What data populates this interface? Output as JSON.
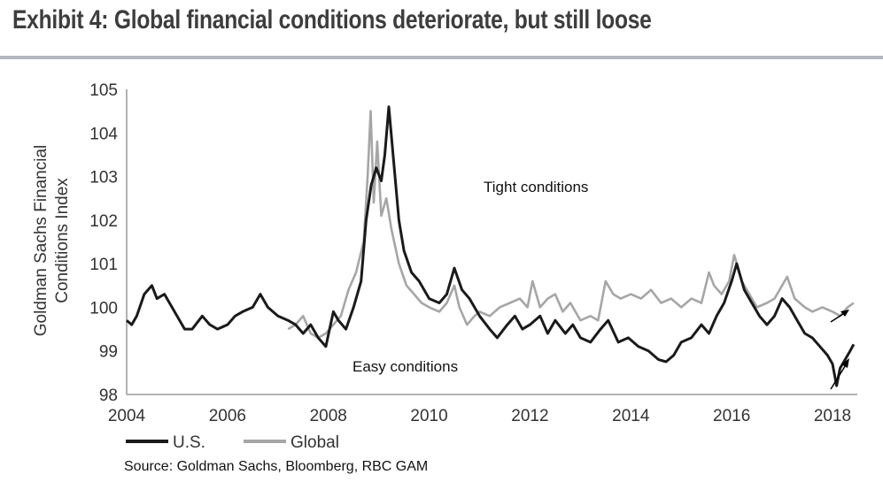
{
  "title": "Exhibit 4: Global financial conditions deteriorate, but still loose",
  "source": "Source: Goldman Sachs, Bloomberg, RBC GAM",
  "chart_data": {
    "type": "line",
    "title": "Exhibit 4: Global financial conditions deteriorate, but still loose",
    "xlabel": "",
    "ylabel": "Goldman Sachs Financial Conditions Index",
    "ylabel_lines": [
      "Goldman Sachs Financial",
      "Conditions Index"
    ],
    "xlim": [
      2004,
      2018.5
    ],
    "ylim": [
      98,
      105
    ],
    "xticks": [
      "2004",
      "2006",
      "2008",
      "2010",
      "2012",
      "2014",
      "2016",
      "2018"
    ],
    "yticks": [
      "98",
      "99",
      "100",
      "101",
      "102",
      "103",
      "104",
      "105"
    ],
    "grid": false,
    "legend_position": "bottom-left",
    "annotations": {
      "tight": "Tight conditions",
      "easy": "Easy conditions"
    },
    "colors": {
      "us": "#1a1a1a",
      "global": "#a6a6a6"
    },
    "series": [
      {
        "name": "U.S.",
        "x": [
          2004.0,
          2004.1,
          2004.2,
          2004.35,
          2004.5,
          2004.6,
          2004.75,
          2004.9,
          2005.0,
          2005.15,
          2005.3,
          2005.5,
          2005.65,
          2005.8,
          2006.0,
          2006.15,
          2006.3,
          2006.5,
          2006.65,
          2006.8,
          2007.0,
          2007.2,
          2007.35,
          2007.5,
          2007.65,
          2007.8,
          2007.95,
          2008.1,
          2008.2,
          2008.35,
          2008.5,
          2008.65,
          2008.75,
          2008.85,
          2008.95,
          2009.05,
          2009.12,
          2009.2,
          2009.3,
          2009.4,
          2009.5,
          2009.65,
          2009.8,
          2010.0,
          2010.2,
          2010.35,
          2010.5,
          2010.65,
          2010.8,
          2011.0,
          2011.2,
          2011.35,
          2011.55,
          2011.7,
          2011.85,
          2012.0,
          2012.2,
          2012.35,
          2012.5,
          2012.7,
          2012.85,
          2013.0,
          2013.2,
          2013.4,
          2013.55,
          2013.75,
          2013.95,
          2014.15,
          2014.35,
          2014.55,
          2014.7,
          2014.85,
          2015.0,
          2015.2,
          2015.4,
          2015.55,
          2015.7,
          2015.85,
          2016.0,
          2016.1,
          2016.25,
          2016.4,
          2016.55,
          2016.7,
          2016.85,
          2017.0,
          2017.15,
          2017.3,
          2017.45,
          2017.6,
          2017.75,
          2017.9,
          2018.0,
          2018.08,
          2018.15,
          2018.25,
          2018.35,
          2018.42
        ],
        "values": [
          99.7,
          99.6,
          99.8,
          100.3,
          100.5,
          100.2,
          100.3,
          100.0,
          99.8,
          99.5,
          99.5,
          99.8,
          99.6,
          99.5,
          99.6,
          99.8,
          99.9,
          100.0,
          100.3,
          100.0,
          99.8,
          99.7,
          99.6,
          99.4,
          99.6,
          99.3,
          99.1,
          99.9,
          99.7,
          99.5,
          100.0,
          100.6,
          102.0,
          102.8,
          103.2,
          102.9,
          103.5,
          104.6,
          103.3,
          102.0,
          101.3,
          100.8,
          100.6,
          100.2,
          100.1,
          100.3,
          100.9,
          100.4,
          100.2,
          99.8,
          99.5,
          99.3,
          99.6,
          99.8,
          99.5,
          99.6,
          99.8,
          99.4,
          99.7,
          99.4,
          99.6,
          99.3,
          99.2,
          99.5,
          99.7,
          99.2,
          99.3,
          99.1,
          99.0,
          98.8,
          98.75,
          98.9,
          99.2,
          99.3,
          99.6,
          99.4,
          99.8,
          100.1,
          100.6,
          101.0,
          100.4,
          100.1,
          99.8,
          99.6,
          99.8,
          100.2,
          100.0,
          99.7,
          99.4,
          99.3,
          99.1,
          98.9,
          98.7,
          98.2,
          98.6,
          98.8,
          99.0,
          99.15
        ]
      },
      {
        "name": "Global",
        "x": [
          2007.2,
          2007.35,
          2007.5,
          2007.65,
          2007.8,
          2007.95,
          2008.1,
          2008.25,
          2008.4,
          2008.55,
          2008.7,
          2008.78,
          2008.84,
          2008.9,
          2008.97,
          2009.05,
          2009.15,
          2009.25,
          2009.4,
          2009.55,
          2009.7,
          2009.85,
          2010.0,
          2010.2,
          2010.35,
          2010.5,
          2010.6,
          2010.75,
          2010.9,
          2011.0,
          2011.2,
          2011.4,
          2011.6,
          2011.8,
          2011.95,
          2012.05,
          2012.2,
          2012.35,
          2012.5,
          2012.65,
          2012.8,
          2013.0,
          2013.2,
          2013.35,
          2013.5,
          2013.65,
          2013.8,
          2014.0,
          2014.2,
          2014.4,
          2014.6,
          2014.8,
          2015.0,
          2015.2,
          2015.4,
          2015.55,
          2015.65,
          2015.8,
          2015.95,
          2016.05,
          2016.2,
          2016.35,
          2016.5,
          2016.7,
          2016.85,
          2017.0,
          2017.1,
          2017.25,
          2017.45,
          2017.6,
          2017.8,
          2018.0,
          2018.15,
          2018.3,
          2018.42
        ],
        "values": [
          99.5,
          99.6,
          99.8,
          99.4,
          99.3,
          99.4,
          99.6,
          99.8,
          100.4,
          100.8,
          101.5,
          103.0,
          104.5,
          102.4,
          103.8,
          102.1,
          102.5,
          101.8,
          101.0,
          100.5,
          100.3,
          100.1,
          100.0,
          99.9,
          100.1,
          100.5,
          100.0,
          99.6,
          99.8,
          99.9,
          99.8,
          100.0,
          100.1,
          100.2,
          100.0,
          100.6,
          100.0,
          100.2,
          100.3,
          99.9,
          100.1,
          99.7,
          99.8,
          99.7,
          100.6,
          100.3,
          100.2,
          100.3,
          100.2,
          100.4,
          100.1,
          100.2,
          100.0,
          100.2,
          100.1,
          100.8,
          100.5,
          100.3,
          100.6,
          101.2,
          100.6,
          100.3,
          100.0,
          100.1,
          100.2,
          100.5,
          100.7,
          100.2,
          100.0,
          99.9,
          100.0,
          99.9,
          99.8,
          100.0,
          100.1
        ]
      }
    ]
  }
}
